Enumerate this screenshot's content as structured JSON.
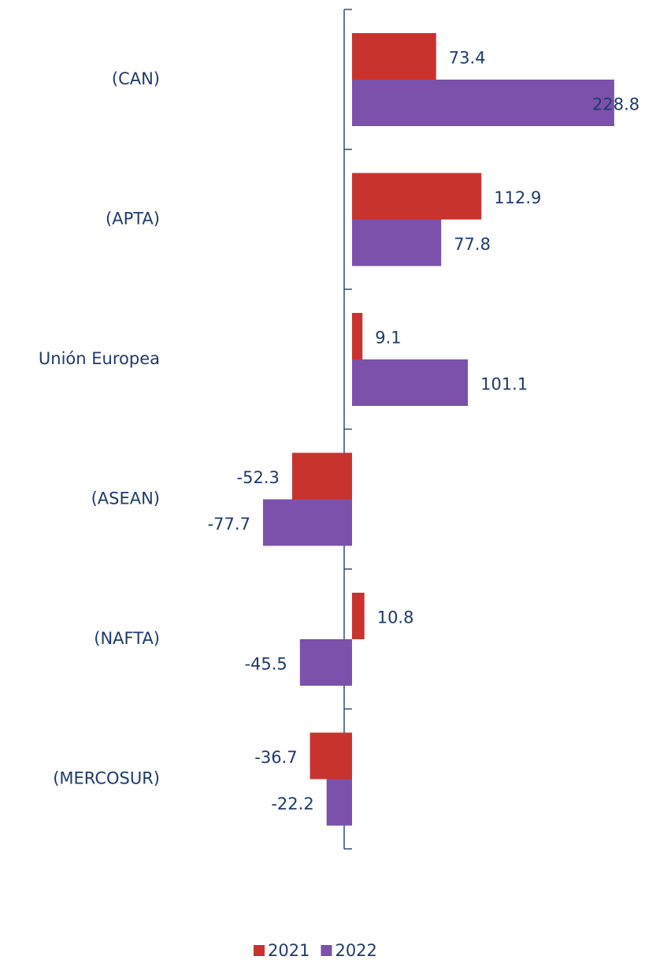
{
  "chart_data": {
    "type": "bar",
    "orientation": "horizontal",
    "categories": [
      "(CAN)",
      "(APTA)",
      "Unión Europea",
      "(ASEAN)",
      "(NAFTA)",
      "(MERCOSUR)"
    ],
    "series": [
      {
        "name": "2021",
        "color": "#c9332e",
        "values": [
          73.4,
          112.9,
          9.1,
          -52.3,
          10.8,
          -36.7
        ]
      },
      {
        "name": "2022",
        "color": "#7b51ab",
        "values": [
          228.8,
          77.8,
          101.1,
          -77.7,
          -45.5,
          -22.2
        ]
      }
    ]
  }
}
